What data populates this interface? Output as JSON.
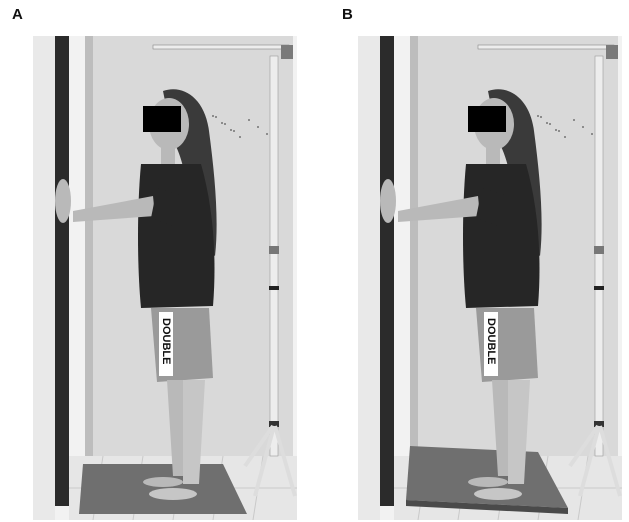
{
  "figure": {
    "panels": [
      {
        "label": "A",
        "board": "flat",
        "anonymization_box": true
      },
      {
        "label": "B",
        "board": "inclined",
        "anonymization_box": true
      }
    ],
    "shorts_text": "DOUBLE",
    "colors": {
      "wall": "#f2f2f2",
      "door": "#d9d9d9",
      "door_frame": "#2b2b2b",
      "floor": "#e6e6e6",
      "board": "#6f6f6f",
      "shirt": "#262626",
      "hair": "#3a3a3a",
      "skin": "#b9b9b9",
      "shorts": "#9a9a9a",
      "stand": "#ededed",
      "black_box": "#000000"
    }
  }
}
